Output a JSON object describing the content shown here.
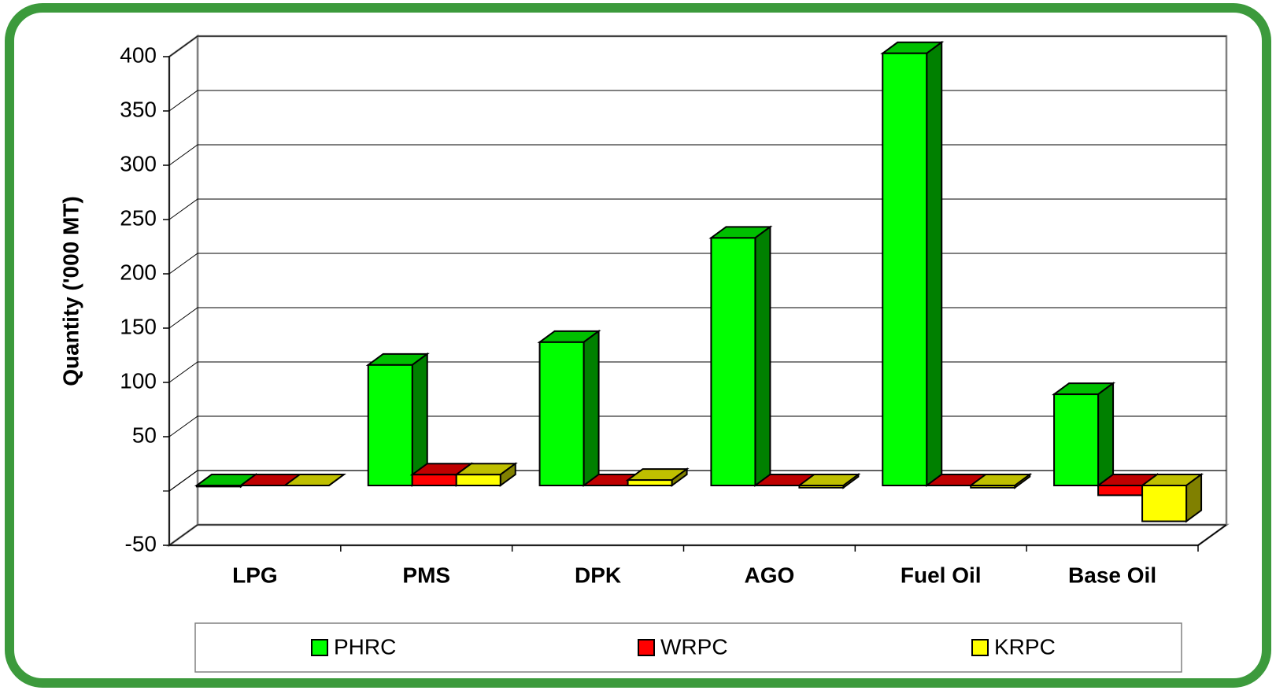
{
  "chart_data": {
    "type": "bar3d",
    "y_label": "Quantity ('000 MT)",
    "categories": [
      "LPG",
      "PMS",
      "DPK",
      "AGO",
      "Fuel Oil",
      "Base Oil"
    ],
    "series": [
      {
        "name": "PHRC",
        "color": "#00ff00",
        "values": [
          -1,
          111,
          132,
          228,
          398,
          84
        ]
      },
      {
        "name": "WRPC",
        "color": "#ff0000",
        "values": [
          0,
          10,
          0,
          0,
          0,
          -9
        ]
      },
      {
        "name": "KRPC",
        "color": "#ffff00",
        "values": [
          0,
          10,
          5,
          -2,
          -2,
          -33
        ]
      }
    ],
    "ylim": [
      -50,
      400
    ],
    "yticks": [
      -50,
      50,
      100,
      150,
      200,
      250,
      300,
      350,
      400
    ],
    "grid": true,
    "legend": "bottom"
  }
}
